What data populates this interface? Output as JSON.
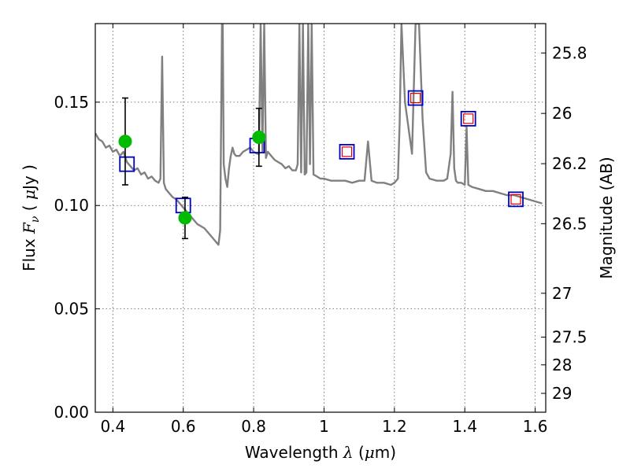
{
  "chart_data": {
    "type": "line",
    "xlabel": "Wavelength  λ (μm)",
    "ylabel": "Flux  F_ν  ( μJy )",
    "y2label": "Magnitude (AB)",
    "xlim": [
      0.35,
      1.63
    ],
    "ylim": [
      0.0,
      0.188
    ],
    "grid": true,
    "colors": {
      "sed": "#808080",
      "observed": "#00bb00",
      "model_box": "#0000cc",
      "model_inner": "#dd0000"
    },
    "x_ticks": [
      {
        "value": 0.4,
        "label": "0.4"
      },
      {
        "value": 0.6,
        "label": "0.6"
      },
      {
        "value": 0.8,
        "label": "0.8"
      },
      {
        "value": 1.0,
        "label": "1"
      },
      {
        "value": 1.2,
        "label": "1.2"
      },
      {
        "value": 1.4,
        "label": "1.4"
      },
      {
        "value": 1.6,
        "label": "1.6"
      }
    ],
    "y_ticks": [
      {
        "value": 0.0,
        "label": "0.00"
      },
      {
        "value": 0.05,
        "label": "0.05"
      },
      {
        "value": 0.1,
        "label": "0.10"
      },
      {
        "value": 0.15,
        "label": "0.15"
      }
    ],
    "mag_ticks": [
      {
        "value": 25.8,
        "label": "25.8"
      },
      {
        "value": 26.0,
        "label": "26"
      },
      {
        "value": 26.2,
        "label": "26.2"
      },
      {
        "value": 26.5,
        "label": "26.5"
      },
      {
        "value": 27.0,
        "label": "27"
      },
      {
        "value": 27.5,
        "label": "27.5"
      },
      {
        "value": 28.0,
        "label": "28"
      },
      {
        "value": 29.0,
        "label": "29"
      }
    ],
    "series": [
      {
        "kind": "model-spectrum",
        "x": [
          0.35,
          0.36,
          0.37,
          0.38,
          0.39,
          0.4,
          0.41,
          0.42,
          0.43,
          0.44,
          0.45,
          0.46,
          0.47,
          0.48,
          0.49,
          0.5,
          0.51,
          0.52,
          0.53,
          0.535,
          0.54,
          0.545,
          0.55,
          0.56,
          0.57,
          0.58,
          0.59,
          0.6,
          0.61,
          0.62,
          0.63,
          0.64,
          0.65,
          0.66,
          0.67,
          0.68,
          0.69,
          0.7,
          0.705,
          0.71,
          0.712,
          0.715,
          0.72,
          0.725,
          0.73,
          0.735,
          0.74,
          0.745,
          0.75,
          0.76,
          0.77,
          0.78,
          0.79,
          0.8,
          0.81,
          0.815,
          0.82,
          0.825,
          0.83,
          0.835,
          0.84,
          0.85,
          0.86,
          0.87,
          0.88,
          0.89,
          0.9,
          0.91,
          0.92,
          0.925,
          0.93,
          0.935,
          0.94,
          0.945,
          0.95,
          0.955,
          0.96,
          0.965,
          0.97,
          0.98,
          0.99,
          1.0,
          1.02,
          1.04,
          1.06,
          1.08,
          1.1,
          1.115,
          1.125,
          1.135,
          1.15,
          1.17,
          1.19,
          1.2,
          1.21,
          1.215,
          1.22,
          1.23,
          1.25,
          1.26,
          1.27,
          1.28,
          1.29,
          1.3,
          1.32,
          1.34,
          1.35,
          1.36,
          1.365,
          1.37,
          1.375,
          1.38,
          1.39,
          1.4,
          1.405,
          1.41,
          1.42,
          1.44,
          1.46,
          1.48,
          1.5,
          1.52,
          1.54,
          1.56,
          1.58,
          1.6,
          1.62
        ],
        "y": [
          0.135,
          0.132,
          0.131,
          0.128,
          0.129,
          0.126,
          0.127,
          0.124,
          0.126,
          0.121,
          0.119,
          0.117,
          0.118,
          0.115,
          0.116,
          0.113,
          0.114,
          0.112,
          0.111,
          0.113,
          0.172,
          0.111,
          0.108,
          0.106,
          0.104,
          0.103,
          0.101,
          0.099,
          0.097,
          0.095,
          0.093,
          0.091,
          0.09,
          0.089,
          0.087,
          0.085,
          0.083,
          0.081,
          0.088,
          0.188,
          0.188,
          0.12,
          0.113,
          0.109,
          0.118,
          0.124,
          0.128,
          0.125,
          0.124,
          0.124,
          0.126,
          0.127,
          0.128,
          0.126,
          0.125,
          0.125,
          0.188,
          0.126,
          0.188,
          0.123,
          0.126,
          0.124,
          0.122,
          0.121,
          0.12,
          0.118,
          0.119,
          0.117,
          0.117,
          0.12,
          0.188,
          0.116,
          0.188,
          0.115,
          0.116,
          0.188,
          0.12,
          0.188,
          0.115,
          0.114,
          0.113,
          0.113,
          0.112,
          0.112,
          0.112,
          0.111,
          0.112,
          0.112,
          0.131,
          0.112,
          0.111,
          0.111,
          0.11,
          0.111,
          0.113,
          0.14,
          0.188,
          0.15,
          0.125,
          0.188,
          0.188,
          0.142,
          0.116,
          0.113,
          0.112,
          0.112,
          0.113,
          0.125,
          0.155,
          0.118,
          0.112,
          0.111,
          0.111,
          0.11,
          0.138,
          0.11,
          0.109,
          0.108,
          0.107,
          0.107,
          0.106,
          0.105,
          0.105,
          0.104,
          0.103,
          0.102,
          0.101
        ]
      },
      {
        "kind": "observed",
        "x": [
          0.435,
          0.605,
          0.815
        ],
        "y": [
          0.131,
          0.094,
          0.133
        ],
        "err": [
          0.021,
          0.01,
          0.014
        ]
      },
      {
        "kind": "synthetic",
        "x": [
          0.44,
          0.6,
          0.81,
          1.065,
          1.26,
          1.41,
          1.545
        ],
        "y": [
          0.12,
          0.1,
          0.129,
          0.126,
          0.152,
          0.142,
          0.103
        ],
        "inner": [
          false,
          false,
          false,
          true,
          true,
          true,
          true
        ]
      }
    ]
  }
}
